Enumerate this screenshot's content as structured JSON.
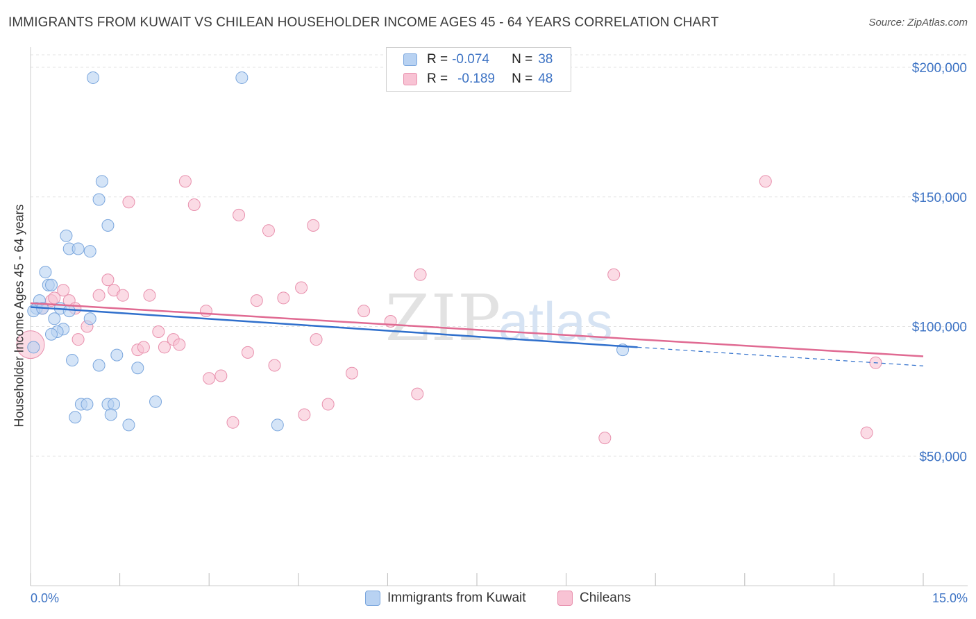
{
  "title": "IMMIGRANTS FROM KUWAIT VS CHILEAN HOUSEHOLDER INCOME AGES 45 - 64 YEARS CORRELATION CHART",
  "source": "Source: ZipAtlas.com",
  "watermark": {
    "zip": "ZIP",
    "atlas": "atlas"
  },
  "legend": {
    "r_label": "R =",
    "n_label": "N =",
    "series": [
      {
        "name": "Immigrants from Kuwait",
        "r": "-0.074",
        "n": "38"
      },
      {
        "name": "Chileans",
        "r": "-0.189",
        "n": "48"
      }
    ]
  },
  "colors": {
    "blue_fill": "#b8d2f2",
    "blue_stroke": "#7aa6dd",
    "blue_line": "#2f6fcc",
    "pink_fill": "#f8c3d4",
    "pink_stroke": "#e890ad",
    "pink_line": "#e06a92",
    "tick_text": "#3d73c4",
    "grid": "#e3e3e3"
  },
  "chart_data": {
    "type": "scatter",
    "title": "IMMIGRANTS FROM KUWAIT VS CHILEAN HOUSEHOLDER INCOME AGES 45 - 64 YEARS CORRELATION CHART",
    "xlabel": "",
    "ylabel": "Householder Income Ages 45 - 64 years",
    "xlim": [
      0,
      15
    ],
    "ylim": [
      0,
      210000
    ],
    "x_tick_labels": [
      {
        "value": 0,
        "label": "0.0%"
      },
      {
        "value": 15,
        "label": "15.0%"
      }
    ],
    "y_ticks": [
      {
        "value": 200000,
        "label": "$200,000"
      },
      {
        "value": 150000,
        "label": "$150,000"
      },
      {
        "value": 100000,
        "label": "$100,000"
      },
      {
        "value": 50000,
        "label": "$50,000"
      }
    ],
    "series": [
      {
        "name": "Immigrants from Kuwait",
        "color": "#b8d2f2",
        "points": [
          [
            1.05,
            196000
          ],
          [
            3.55,
            196000
          ],
          [
            1.2,
            156000
          ],
          [
            1.15,
            149000
          ],
          [
            1.3,
            139000
          ],
          [
            0.6,
            135000
          ],
          [
            0.65,
            130000
          ],
          [
            0.8,
            130000
          ],
          [
            1.0,
            129000
          ],
          [
            0.25,
            121000
          ],
          [
            0.3,
            116000
          ],
          [
            0.35,
            116000
          ],
          [
            0.15,
            110000
          ],
          [
            0.1,
            107000
          ],
          [
            0.05,
            106000
          ],
          [
            0.2,
            107000
          ],
          [
            0.5,
            107000
          ],
          [
            0.65,
            106000
          ],
          [
            0.4,
            103000
          ],
          [
            1.0,
            103000
          ],
          [
            0.55,
            99000
          ],
          [
            0.45,
            98000
          ],
          [
            0.35,
            97000
          ],
          [
            0.05,
            92000
          ],
          [
            1.45,
            89000
          ],
          [
            0.7,
            87000
          ],
          [
            1.15,
            85000
          ],
          [
            1.8,
            84000
          ],
          [
            2.1,
            71000
          ],
          [
            0.85,
            70000
          ],
          [
            0.95,
            70000
          ],
          [
            1.3,
            70000
          ],
          [
            1.4,
            70000
          ],
          [
            1.35,
            66000
          ],
          [
            0.75,
            65000
          ],
          [
            1.65,
            62000
          ],
          [
            4.15,
            62000
          ],
          [
            9.95,
            91000
          ]
        ],
        "trend": {
          "x0": 0,
          "y0": 107500,
          "x1": 10.2,
          "y1": 92000,
          "dash_x1": 15,
          "dash_y1": 84800
        }
      },
      {
        "name": "Chileans",
        "color": "#f8c3d4",
        "points": [
          [
            0.0,
            93000
          ],
          [
            0.2,
            107000
          ],
          [
            0.35,
            110000
          ],
          [
            0.4,
            111000
          ],
          [
            0.55,
            114000
          ],
          [
            0.65,
            110000
          ],
          [
            0.75,
            107000
          ],
          [
            0.8,
            95000
          ],
          [
            0.95,
            100000
          ],
          [
            1.15,
            112000
          ],
          [
            1.3,
            118000
          ],
          [
            1.4,
            114000
          ],
          [
            1.55,
            112000
          ],
          [
            1.65,
            148000
          ],
          [
            1.8,
            91000
          ],
          [
            1.9,
            92000
          ],
          [
            2.0,
            112000
          ],
          [
            2.15,
            98000
          ],
          [
            2.25,
            92000
          ],
          [
            2.4,
            95000
          ],
          [
            2.5,
            93000
          ],
          [
            2.6,
            156000
          ],
          [
            2.75,
            147000
          ],
          [
            2.95,
            106000
          ],
          [
            3.0,
            80000
          ],
          [
            3.2,
            81000
          ],
          [
            3.4,
            63000
          ],
          [
            3.5,
            143000
          ],
          [
            3.65,
            90000
          ],
          [
            3.8,
            110000
          ],
          [
            4.0,
            137000
          ],
          [
            4.1,
            85000
          ],
          [
            4.25,
            111000
          ],
          [
            4.55,
            115000
          ],
          [
            4.6,
            66000
          ],
          [
            4.75,
            139000
          ],
          [
            4.8,
            95000
          ],
          [
            5.0,
            70000
          ],
          [
            5.4,
            82000
          ],
          [
            5.6,
            106000
          ],
          [
            6.55,
            120000
          ],
          [
            6.5,
            74000
          ],
          [
            9.65,
            57000
          ],
          [
            9.8,
            120000
          ],
          [
            12.35,
            156000
          ],
          [
            14.05,
            59000
          ],
          [
            14.2,
            86000
          ],
          [
            6.05,
            102000
          ]
        ],
        "trend": {
          "x0": 0,
          "y0": 109000,
          "x1": 15,
          "y1": 88500
        }
      }
    ]
  }
}
